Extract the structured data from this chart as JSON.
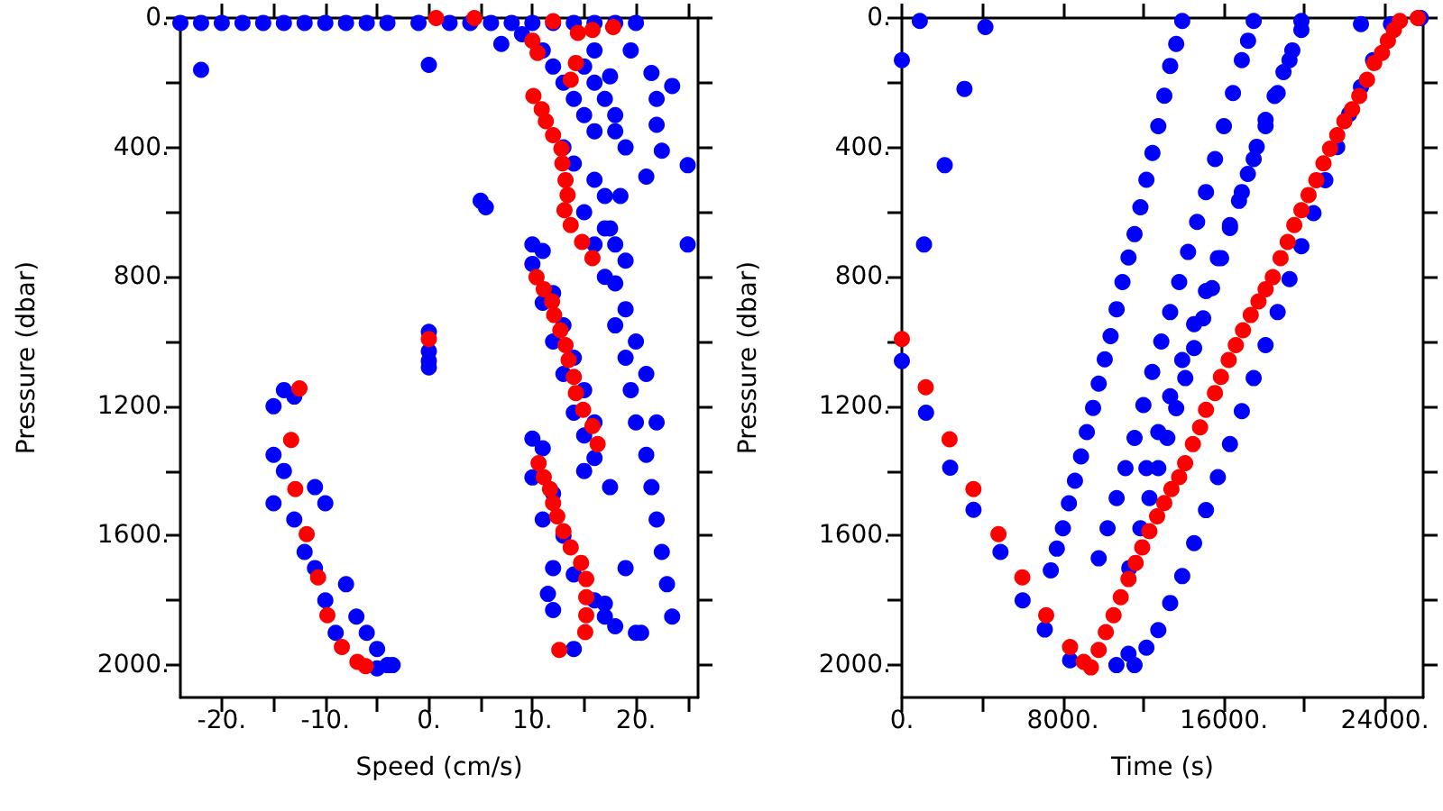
{
  "chart_data": [
    {
      "type": "scatter",
      "xlabel": "Speed (cm/s)",
      "ylabel": "Pressure (dbar)",
      "xlim": [
        -24,
        26
      ],
      "ylim": [
        2100,
        0
      ],
      "xticks": [
        {
          "value": -20,
          "label": "-20."
        },
        {
          "value": -15,
          "label": null
        },
        {
          "value": -10,
          "label": "-10."
        },
        {
          "value": -5,
          "label": null
        },
        {
          "value": 0,
          "label": "0."
        },
        {
          "value": 5,
          "label": null
        },
        {
          "value": 10,
          "label": "10."
        },
        {
          "value": 15,
          "label": null
        },
        {
          "value": 20,
          "label": "20."
        },
        {
          "value": 25,
          "label": null
        }
      ],
      "yticks": [
        {
          "value": 0,
          "label": "0."
        },
        {
          "value": 200,
          "label": null
        },
        {
          "value": 400,
          "label": "400."
        },
        {
          "value": 600,
          "label": null
        },
        {
          "value": 800,
          "label": "800."
        },
        {
          "value": 1000,
          "label": null
        },
        {
          "value": 1200,
          "label": "1200."
        },
        {
          "value": 1400,
          "label": null
        },
        {
          "value": 1600,
          "label": "1600."
        },
        {
          "value": 1800,
          "label": null
        },
        {
          "value": 2000,
          "label": "2000."
        }
      ],
      "grid": false,
      "marker": "circle",
      "series": [
        {
          "color": "#0000ff",
          "x": [
            -24,
            -22,
            -20,
            -18,
            -16,
            -14,
            -12,
            -10,
            -8,
            -6,
            -4,
            -1,
            2,
            4,
            6,
            8,
            10,
            12,
            14,
            16,
            18,
            20,
            -22,
            0,
            5,
            5.5,
            7,
            19.5,
            21.5,
            23.5,
            22,
            22,
            22.5,
            21,
            25,
            25,
            9,
            11,
            12,
            13,
            14,
            15,
            16,
            15,
            16,
            17,
            17.5,
            18,
            13,
            14,
            16,
            17,
            15,
            17,
            16,
            18,
            17,
            18,
            19,
            20,
            16,
            18,
            19,
            18.5,
            17.5,
            19,
            18,
            19,
            19.5,
            20,
            21,
            21.5,
            22,
            22.5,
            23,
            23.5,
            20.5,
            19,
            17.5,
            21,
            22,
            -15,
            -14,
            -13,
            -15,
            -14,
            -15,
            -11,
            -10,
            -13,
            -12,
            -11,
            -10,
            -8,
            -9,
            -7,
            -6,
            -5,
            -4,
            -5,
            -3.5,
            0,
            0,
            0,
            0,
            10,
            11,
            10,
            12,
            11,
            13,
            12,
            14,
            13,
            15,
            14,
            16,
            15,
            16,
            15,
            10,
            11,
            10,
            12,
            11,
            13,
            12,
            11.5,
            14,
            16,
            17,
            18,
            14,
            20,
            17,
            12
          ],
          "values": [
            15,
            15,
            15,
            15,
            15,
            15,
            15,
            15,
            15,
            15,
            15,
            15,
            15,
            15,
            15,
            15,
            15,
            15,
            15,
            15,
            15,
            15,
            160,
            145,
            565,
            585,
            80,
            100,
            170,
            210,
            250,
            330,
            410,
            490,
            455,
            700,
            50,
            100,
            150,
            200,
            250,
            150,
            100,
            300,
            350,
            250,
            180,
            350,
            400,
            450,
            500,
            550,
            600,
            650,
            700,
            700,
            800,
            820,
            900,
            1000,
            200,
            300,
            400,
            550,
            650,
            750,
            950,
            1050,
            1150,
            1250,
            1350,
            1450,
            1550,
            1650,
            1750,
            1850,
            1900,
            1700,
            1450,
            1100,
            1250,
            1200,
            1150,
            1170,
            1350,
            1400,
            1500,
            1450,
            1500,
            1550,
            1650,
            1700,
            1800,
            1750,
            1900,
            1850,
            1900,
            1950,
            2000,
            2010,
            2000,
            970,
            1030,
            1060,
            1080,
            700,
            720,
            760,
            850,
            880,
            950,
            1000,
            1050,
            1100,
            1150,
            1220,
            1250,
            1290,
            1360,
            1400,
            1300,
            1330,
            1420,
            1470,
            1550,
            1600,
            1700,
            1780,
            1720,
            1800,
            1810,
            1880,
            1950,
            1900,
            1850,
            1830
          ]
        },
        {
          "color": "#ff0000",
          "x": [
            0.7,
            4.4,
            12,
            14.4,
            15.8,
            17.8,
            10,
            10.5,
            14.2,
            13.7,
            10.1,
            10.9,
            11.3,
            12,
            12.8,
            12.9,
            13.2,
            13.4,
            13.1,
            13.7,
            14.8,
            15.8,
            0,
            10.4,
            11.1,
            11.9,
            12.1,
            12.7,
            13.2,
            13.5,
            14,
            14.2,
            14.9,
            15.8,
            16.3,
            10.6,
            11.1,
            11.7,
            12,
            12.4,
            13,
            13.7,
            14.7,
            15.2,
            15.2,
            15.2,
            15.1,
            12.6,
            -12.5,
            -13.3,
            -12.9,
            -11.8,
            -10.7,
            -9.8,
            -8.4,
            -6.9,
            -6.1
          ],
          "values": [
            0,
            0,
            10,
            46,
            37,
            28,
            70,
            108,
            139,
            191,
            241,
            282,
            319,
            362,
            404,
            449,
            501,
            547,
            594,
            640,
            692,
            742,
            992,
            801,
            838,
            876,
            918,
            965,
            1011,
            1057,
            1109,
            1159,
            1211,
            1261,
            1317,
            1376,
            1419,
            1456,
            1499,
            1540,
            1586,
            1636,
            1684,
            1734,
            1790,
            1846,
            1898,
            1953,
            1145,
            1304,
            1456,
            1595,
            1729,
            1846,
            1944,
            1990,
            2003
          ]
        }
      ]
    },
    {
      "type": "scatter",
      "xlabel": "Time (s)",
      "ylabel": "Pressure (dbar)",
      "xlim": [
        0,
        25900
      ],
      "ylim": [
        2100,
        0
      ],
      "xticks": [
        {
          "value": 0,
          "label": "0."
        },
        {
          "value": 4000,
          "label": null
        },
        {
          "value": 8000,
          "label": "8000."
        },
        {
          "value": 12000,
          "label": null
        },
        {
          "value": 16000,
          "label": "16000."
        },
        {
          "value": 20000,
          "label": null
        },
        {
          "value": 24000,
          "label": "24000."
        }
      ],
      "yticks": [
        {
          "value": 0,
          "label": "0."
        },
        {
          "value": 200,
          "label": null
        },
        {
          "value": 400,
          "label": "400."
        },
        {
          "value": 600,
          "label": null
        },
        {
          "value": 800,
          "label": "800."
        },
        {
          "value": 1000,
          "label": null
        },
        {
          "value": 1200,
          "label": "1200."
        },
        {
          "value": 1400,
          "label": null
        },
        {
          "value": 1600,
          "label": "1600."
        },
        {
          "value": 1800,
          "label": null
        },
        {
          "value": 2000,
          "label": "2000."
        }
      ],
      "grid": false,
      "marker": "circle",
      "series": [
        {
          "color": "#0000ff",
          "x": [
            0,
            0,
            1200,
            2400,
            3560,
            4900,
            6000,
            7100,
            8360,
            10660,
            11260,
            3110,
            2130,
            1100,
            890,
            4150,
            7400,
            8000,
            8600,
            9190,
            9780,
            10370,
            10960,
            11560,
            12150,
            12740,
            13330,
            13930,
            9780,
            10670,
            11560,
            12440,
            13330,
            14220,
            15110,
            16000,
            16890,
            17480,
            11850,
            12740,
            13630,
            14520,
            15410,
            16300,
            17190,
            18070,
            18960,
            19850,
            11560,
            12740,
            13930,
            15110,
            16300,
            17480,
            18670,
            19850,
            21040,
            22220,
            23410,
            24300,
            25780,
            12150,
            13330,
            14520,
            15700,
            16890,
            18070,
            19260,
            19850,
            22810,
            7700,
            8300,
            8900,
            9500,
            10080,
            10670,
            11260,
            11850,
            12450,
            13040,
            13630,
            10220,
            11110,
            12000,
            12890,
            13780,
            14670,
            15560,
            16450,
            17200,
            11300,
            12300,
            13190,
            14080,
            14970,
            15860,
            16750,
            17630,
            18520,
            19400,
            12150,
            13330,
            14520,
            15700,
            16890,
            18070,
            19260,
            20450,
            21630,
            22810,
            12740,
            13930,
            15110,
            16300,
            17480,
            18670
          ],
          "values": [
            130,
            1060,
            1220,
            1390,
            1520,
            1650,
            1800,
            1890,
            1985,
            2000,
            1965,
            219,
            455,
            700,
            9,
            28,
            1707,
            1577,
            1430,
            1280,
            1130,
            983,
            816,
            668,
            500,
            334,
            148,
            9,
            1670,
            1484,
            1298,
            1094,
            909,
            723,
            538,
            334,
            130,
            9,
            1577,
            1391,
            1206,
            1020,
            835,
            649,
            482,
            315,
            167,
            37,
            2000,
            1892,
            1725,
            1521,
            1317,
            1113,
            909,
            705,
            501,
            297,
            130,
            19,
            0,
            1391,
            1169,
            946,
            742,
            538,
            334,
            130,
            9,
            19,
            1640,
            1500,
            1355,
            1205,
            1055,
            900,
            740,
            585,
            417,
            240,
            80,
            1577,
            1391,
            1196,
            1000,
            816,
            630,
            436,
            232,
            70,
            1700,
            1484,
            1298,
            1113,
            928,
            742,
            565,
            398,
            241,
            100,
            1946,
            1808,
            1623,
            1419,
            1215,
            1011,
            807,
            603,
            399,
            213,
            1280,
            1057,
            844,
            640,
            436,
            232
          ]
        },
        {
          "color": "#ff0000",
          "x": [
            0,
            1185,
            2370,
            3556,
            4800,
            5985,
            7170,
            8356,
            9037,
            9393,
            9778,
            10133,
            10519,
            10874,
            11259,
            11615,
            11941,
            12296,
            12681,
            13037,
            13393,
            13778,
            14074,
            14459,
            14815,
            15111,
            15556,
            15852,
            16237,
            16593,
            16948,
            17333,
            17719,
            18074,
            18430,
            18815,
            19170,
            19496,
            19852,
            20207,
            20593,
            20948,
            21274,
            21630,
            21985,
            22370,
            22726,
            23111,
            23467,
            23852,
            24148,
            24444,
            24741,
            25630
          ],
          "values": [
            992,
            1141,
            1302,
            1456,
            1595,
            1729,
            1846,
            1944,
            1990,
            2007,
            1953,
            1898,
            1846,
            1790,
            1734,
            1684,
            1636,
            1586,
            1540,
            1499,
            1456,
            1419,
            1376,
            1317,
            1265,
            1211,
            1159,
            1109,
            1057,
            1011,
            965,
            918,
            876,
            838,
            801,
            742,
            692,
            640,
            594,
            547,
            501,
            449,
            404,
            362,
            319,
            282,
            241,
            191,
            139,
            108,
            70,
            37,
            9,
            0
          ]
        }
      ]
    }
  ]
}
